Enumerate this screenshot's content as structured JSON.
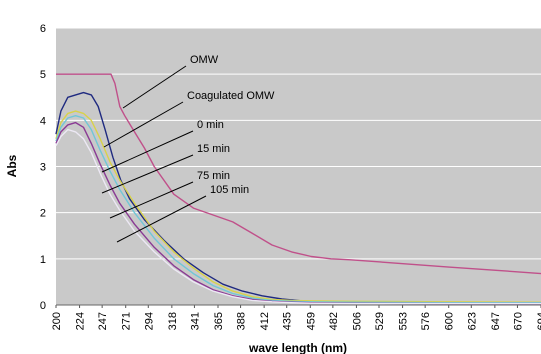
{
  "chart_data": {
    "type": "line",
    "xlabel": "wave length (nm)",
    "ylabel": "Abs",
    "xlim": [
      200,
      694
    ],
    "ylim": [
      0,
      6
    ],
    "grid": true,
    "y_ticks": [
      0,
      1,
      2,
      3,
      4,
      5,
      6
    ],
    "x_ticks": [
      200,
      224,
      247,
      271,
      294,
      318,
      341,
      365,
      388,
      412,
      435,
      459,
      482,
      506,
      529,
      553,
      576,
      600,
      623,
      647,
      670,
      694
    ],
    "colors": {
      "background": "#c9c9c9",
      "gridline": "#ffffff"
    },
    "series": [
      {
        "name": "OMW",
        "color": "#c0508a",
        "x": [
          200,
          220,
          240,
          256,
          260,
          265,
          270,
          280,
          290,
          300,
          320,
          340,
          360,
          380,
          400,
          420,
          440,
          460,
          480,
          500,
          550,
          600,
          650,
          694
        ],
        "y": [
          5.0,
          5.0,
          5.0,
          5.0,
          4.8,
          4.3,
          4.1,
          3.75,
          3.4,
          3.0,
          2.4,
          2.1,
          1.95,
          1.8,
          1.55,
          1.3,
          1.15,
          1.05,
          1.0,
          0.98,
          0.9,
          0.82,
          0.75,
          0.68
        ]
      },
      {
        "name": "Coagulated OMW",
        "color": "#1f2a80",
        "x": [
          200,
          205,
          212,
          220,
          228,
          236,
          243,
          250,
          258,
          266,
          275,
          290,
          310,
          330,
          350,
          370,
          390,
          410,
          430,
          450,
          480,
          520,
          600,
          694
        ],
        "y": [
          3.7,
          4.2,
          4.5,
          4.55,
          4.6,
          4.55,
          4.3,
          3.8,
          3.2,
          2.7,
          2.3,
          1.85,
          1.4,
          1.0,
          0.7,
          0.45,
          0.3,
          0.2,
          0.13,
          0.09,
          0.06,
          0.04,
          0.03,
          0.03
        ]
      },
      {
        "name": "0 min",
        "color": "#d8d24a",
        "x": [
          200,
          205,
          212,
          220,
          228,
          236,
          245,
          255,
          265,
          280,
          300,
          320,
          340,
          360,
          380,
          400,
          420,
          440,
          460,
          500,
          600,
          694
        ],
        "y": [
          3.6,
          3.95,
          4.15,
          4.2,
          4.15,
          4.0,
          3.6,
          3.1,
          2.7,
          2.2,
          1.6,
          1.15,
          0.8,
          0.5,
          0.3,
          0.18,
          0.12,
          0.1,
          0.09,
          0.08,
          0.07,
          0.06
        ]
      },
      {
        "name": "15 min",
        "color": "#70c7d6",
        "x": [
          200,
          205,
          212,
          220,
          228,
          236,
          245,
          255,
          265,
          280,
          300,
          320,
          340,
          360,
          380,
          400,
          420,
          440,
          460,
          500,
          600,
          694
        ],
        "y": [
          3.55,
          3.85,
          4.05,
          4.1,
          4.05,
          3.8,
          3.35,
          2.9,
          2.5,
          2.0,
          1.45,
          1.0,
          0.68,
          0.42,
          0.25,
          0.15,
          0.1,
          0.08,
          0.07,
          0.06,
          0.05,
          0.05
        ]
      },
      {
        "name": "75 min",
        "color": "#8a3a94",
        "x": [
          200,
          205,
          212,
          220,
          228,
          236,
          245,
          255,
          265,
          280,
          300,
          320,
          340,
          360,
          380,
          400,
          420,
          440,
          460,
          500,
          600,
          694
        ],
        "y": [
          3.5,
          3.75,
          3.9,
          3.95,
          3.85,
          3.5,
          3.05,
          2.6,
          2.2,
          1.75,
          1.25,
          0.85,
          0.55,
          0.33,
          0.2,
          0.12,
          0.08,
          0.06,
          0.05,
          0.04,
          0.03,
          0.03
        ]
      },
      {
        "name": "105 min",
        "color": "#ece8f4",
        "x": [
          200,
          205,
          212,
          220,
          228,
          236,
          245,
          255,
          265,
          280,
          300,
          320,
          340,
          360,
          380,
          400,
          420,
          440,
          460,
          500,
          600,
          694
        ],
        "y": [
          3.45,
          3.65,
          3.8,
          3.75,
          3.6,
          3.3,
          2.85,
          2.4,
          2.05,
          1.6,
          1.15,
          0.78,
          0.5,
          0.3,
          0.18,
          0.1,
          0.07,
          0.05,
          0.04,
          0.03,
          0.03,
          0.03
        ]
      }
    ]
  }
}
